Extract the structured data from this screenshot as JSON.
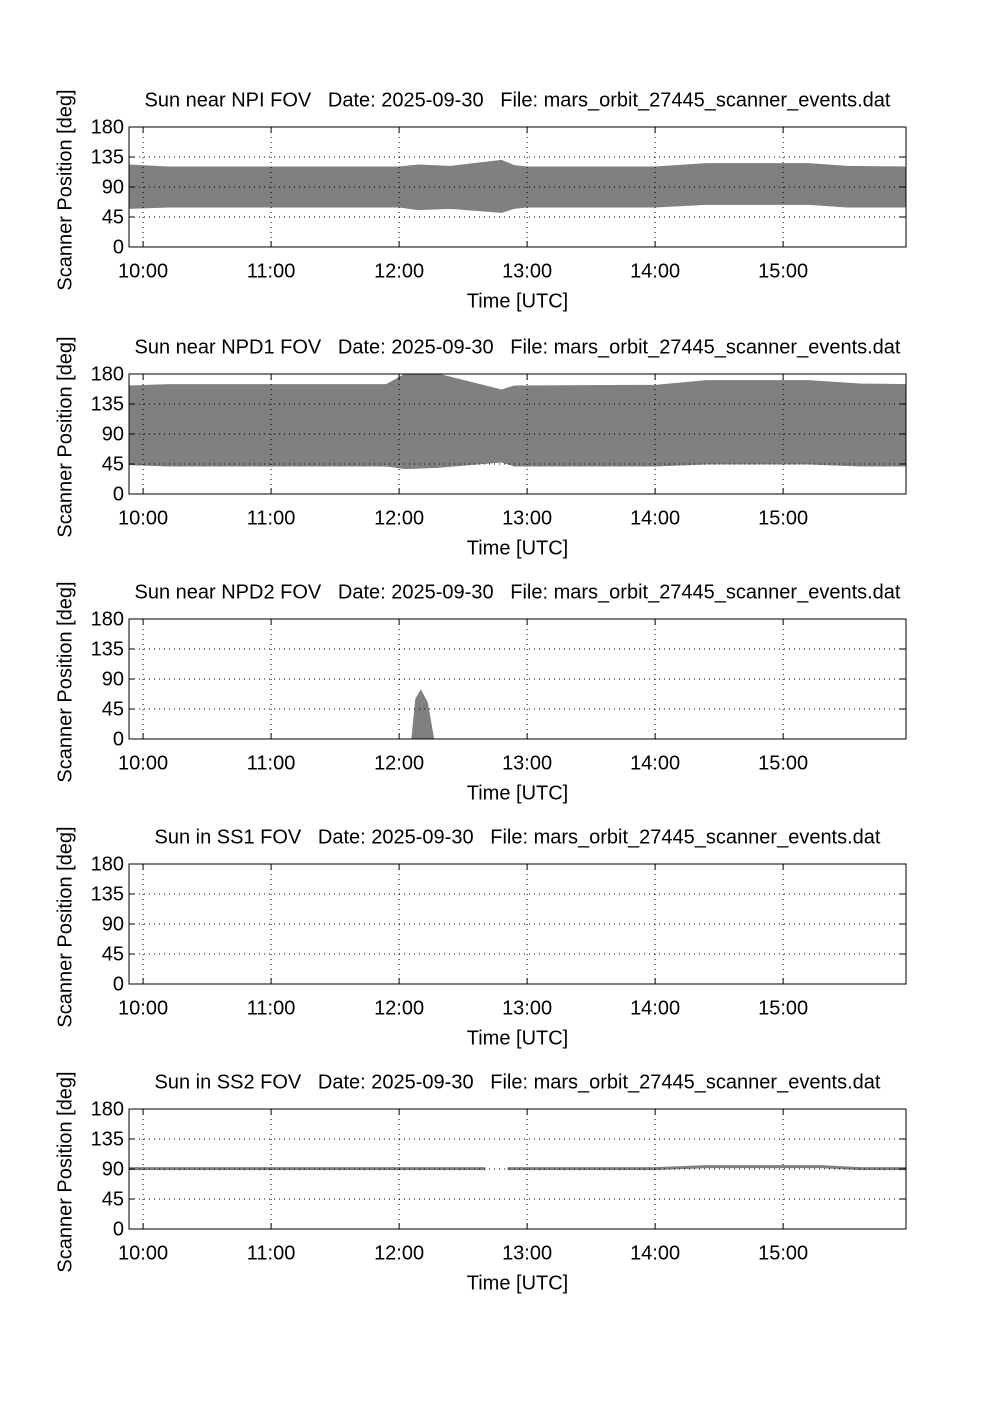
{
  "chart_data": [
    {
      "type": "band",
      "title": "Sun near NPI FOV   Date: 2025-09-30   File: mars_orbit_27445_scanner_events.dat",
      "xlabel": "Time [UTC]",
      "ylabel": "Scanner Position [deg]",
      "color": "#808080",
      "grid": true,
      "x": [
        9.89,
        10.2,
        12.0,
        12.15,
        12.4,
        12.8,
        12.9,
        13.0,
        14.0,
        14.4,
        15.2,
        15.5,
        15.96
      ],
      "upper": [
        123,
        120,
        120,
        123,
        121,
        130,
        122,
        120,
        120,
        125,
        125,
        121,
        120
      ],
      "lower": [
        58,
        60,
        60,
        56,
        58,
        52,
        58,
        60,
        60,
        64,
        64,
        60,
        60
      ],
      "xlim": [
        9.89,
        15.96
      ],
      "ylim": [
        0,
        180
      ],
      "xticks": [
        {
          "value": 10,
          "label": "10:00"
        },
        {
          "value": 11,
          "label": "11:00"
        },
        {
          "value": 12,
          "label": "12:00"
        },
        {
          "value": 13,
          "label": "13:00"
        },
        {
          "value": 14,
          "label": "14:00"
        },
        {
          "value": 15,
          "label": "15:00"
        }
      ],
      "yticks": [
        0,
        45,
        90,
        135,
        180
      ]
    },
    {
      "type": "band",
      "title": "Sun near NPD1 FOV   Date: 2025-09-30   File: mars_orbit_27445_scanner_events.dat",
      "xlabel": "Time [UTC]",
      "ylabel": "Scanner Position [deg]",
      "color": "#808080",
      "grid": true,
      "x": [
        9.89,
        10.2,
        11.9,
        12.05,
        12.3,
        12.8,
        12.9,
        14.0,
        14.4,
        15.2,
        15.6,
        15.96
      ],
      "upper": [
        162,
        164,
        164,
        180,
        180,
        156,
        162,
        163,
        170,
        170,
        165,
        164
      ],
      "lower": [
        44,
        42,
        42,
        38,
        40,
        48,
        42,
        42,
        45,
        45,
        42,
        42
      ],
      "xlim": [
        9.89,
        15.96
      ],
      "ylim": [
        0,
        180
      ],
      "xticks": [
        {
          "value": 10,
          "label": "10:00"
        },
        {
          "value": 11,
          "label": "11:00"
        },
        {
          "value": 12,
          "label": "12:00"
        },
        {
          "value": 13,
          "label": "13:00"
        },
        {
          "value": 14,
          "label": "14:00"
        },
        {
          "value": 15,
          "label": "15:00"
        }
      ],
      "yticks": [
        0,
        45,
        90,
        135,
        180
      ]
    },
    {
      "type": "band",
      "title": "Sun near NPD2 FOV   Date: 2025-09-30   File: mars_orbit_27445_scanner_events.dat",
      "xlabel": "Time [UTC]",
      "ylabel": "Scanner Position [deg]",
      "color": "#808080",
      "grid": true,
      "x": [
        12.1,
        12.13,
        12.17,
        12.22,
        12.27
      ],
      "upper": [
        0,
        60,
        73,
        55,
        0
      ],
      "lower": [
        0,
        0,
        0,
        0,
        0
      ],
      "xlim": [
        9.89,
        15.96
      ],
      "ylim": [
        0,
        180
      ],
      "xticks": [
        {
          "value": 10,
          "label": "10:00"
        },
        {
          "value": 11,
          "label": "11:00"
        },
        {
          "value": 12,
          "label": "12:00"
        },
        {
          "value": 13,
          "label": "13:00"
        },
        {
          "value": 14,
          "label": "14:00"
        },
        {
          "value": 15,
          "label": "15:00"
        }
      ],
      "yticks": [
        0,
        45,
        90,
        135,
        180
      ]
    },
    {
      "type": "band",
      "title": "Sun in SS1 FOV   Date: 2025-09-30   File: mars_orbit_27445_scanner_events.dat",
      "xlabel": "Time [UTC]",
      "ylabel": "Scanner Position [deg]",
      "color": "#808080",
      "grid": true,
      "x": [],
      "upper": [],
      "lower": [],
      "xlim": [
        9.89,
        15.96
      ],
      "ylim": [
        0,
        180
      ],
      "xticks": [
        {
          "value": 10,
          "label": "10:00"
        },
        {
          "value": 11,
          "label": "11:00"
        },
        {
          "value": 12,
          "label": "12:00"
        },
        {
          "value": 13,
          "label": "13:00"
        },
        {
          "value": 14,
          "label": "14:00"
        },
        {
          "value": 15,
          "label": "15:00"
        }
      ],
      "yticks": [
        0,
        45,
        90,
        135,
        180
      ]
    },
    {
      "type": "band",
      "title": "Sun in SS2 FOV   Date: 2025-09-30   File: mars_orbit_27445_scanner_events.dat",
      "xlabel": "Time [UTC]",
      "ylabel": "Scanner Position [deg]",
      "color": "#808080",
      "grid": true,
      "x": [
        9.89,
        12.0,
        12.67,
        12.76,
        12.85,
        14.0,
        14.4,
        15.3,
        15.6,
        15.96
      ],
      "upper": [
        92,
        92,
        92,
        null,
        92,
        92,
        95,
        95,
        92,
        92
      ],
      "lower": [
        89,
        89,
        89,
        null,
        89,
        89,
        92,
        92,
        89,
        89
      ],
      "xlim": [
        9.89,
        15.96
      ],
      "ylim": [
        0,
        180
      ],
      "xticks": [
        {
          "value": 10,
          "label": "10:00"
        },
        {
          "value": 11,
          "label": "11:00"
        },
        {
          "value": 12,
          "label": "12:00"
        },
        {
          "value": 13,
          "label": "13:00"
        },
        {
          "value": 14,
          "label": "14:00"
        },
        {
          "value": 15,
          "label": "15:00"
        }
      ],
      "yticks": [
        0,
        45,
        90,
        135,
        180
      ]
    }
  ]
}
